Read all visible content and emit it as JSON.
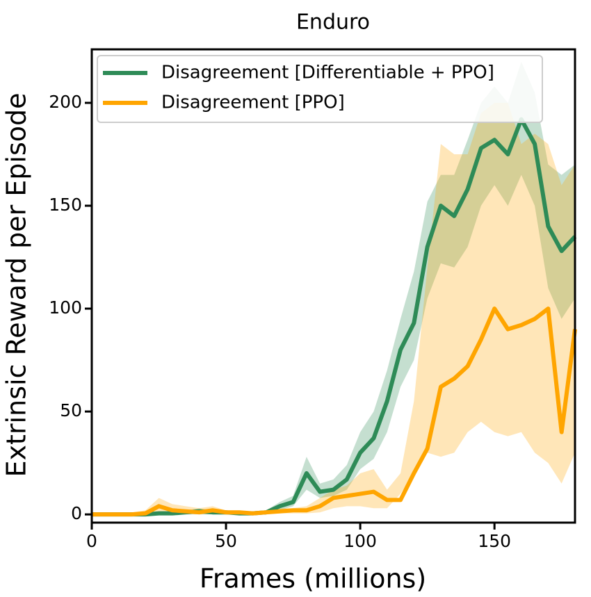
{
  "chart_data": {
    "type": "line",
    "title": "Enduro",
    "x_label": "Frames (millions)",
    "y_label": "Extrinsic Reward per Episode",
    "x": [
      0,
      5,
      10,
      15,
      20,
      25,
      30,
      35,
      40,
      45,
      50,
      55,
      60,
      65,
      70,
      75,
      80,
      85,
      90,
      95,
      100,
      105,
      110,
      115,
      120,
      125,
      130,
      135,
      140,
      145,
      150,
      155,
      160,
      165,
      170,
      175,
      180
    ],
    "series": [
      {
        "name": "Disagreement [Differentiable + PPO]",
        "color": "#2e8b57",
        "values": [
          0,
          0,
          0,
          0,
          0,
          0.5,
          0.5,
          1,
          1.5,
          1,
          1,
          0.5,
          0.5,
          1,
          4,
          6,
          20,
          11,
          12,
          17,
          30,
          37,
          55,
          80,
          93,
          130,
          150,
          145,
          158,
          178,
          182,
          175,
          192,
          180,
          140,
          128,
          135
        ],
        "lower": [
          0,
          0,
          0,
          0,
          0,
          0,
          0,
          0,
          0,
          0,
          0,
          0,
          0,
          0,
          2,
          4,
          12,
          8,
          9,
          12,
          22,
          27,
          40,
          62,
          75,
          105,
          122,
          120,
          130,
          150,
          160,
          150,
          165,
          150,
          110,
          95,
          105
        ],
        "upper": [
          0,
          0,
          0,
          0,
          0,
          1,
          1,
          2,
          3,
          2,
          2,
          1,
          1,
          2,
          6,
          9,
          28,
          15,
          17,
          24,
          40,
          50,
          70,
          95,
          118,
          152,
          165,
          165,
          182,
          200,
          208,
          200,
          220,
          205,
          170,
          165,
          170
        ]
      },
      {
        "name": "Disagreement [PPO]",
        "color": "#ffa500",
        "values": [
          0,
          0,
          0,
          0,
          0.5,
          4,
          2,
          1.5,
          1,
          2,
          1,
          1,
          0.5,
          1,
          1.5,
          2,
          2,
          4,
          8,
          9,
          10,
          11,
          7,
          7,
          20,
          32,
          62,
          66,
          72,
          85,
          100,
          90,
          92,
          95,
          100,
          40,
          90
        ],
        "lower": [
          0,
          0,
          0,
          0,
          0,
          1,
          0.5,
          0.5,
          0,
          0.5,
          0,
          0,
          0,
          0,
          0.5,
          0.5,
          0.5,
          1,
          3,
          4,
          4,
          3,
          3,
          10,
          20,
          30,
          28,
          30,
          40,
          45,
          40,
          38,
          40,
          30,
          25,
          15,
          30
        ],
        "upper": [
          0,
          0,
          0,
          1,
          2,
          8,
          5,
          4,
          3,
          4,
          2,
          2,
          1,
          2,
          3,
          3,
          4,
          8,
          12,
          14,
          20,
          22,
          12,
          20,
          55,
          120,
          180,
          175,
          175,
          195,
          200,
          200,
          180,
          185,
          180,
          160,
          170
        ]
      }
    ],
    "xlim": [
      0,
      180
    ],
    "ylim": [
      -4,
      226
    ],
    "xticks": [
      0,
      50,
      100,
      150
    ],
    "yticks": [
      0,
      50,
      100,
      150,
      200
    ],
    "legend": "upper left"
  }
}
